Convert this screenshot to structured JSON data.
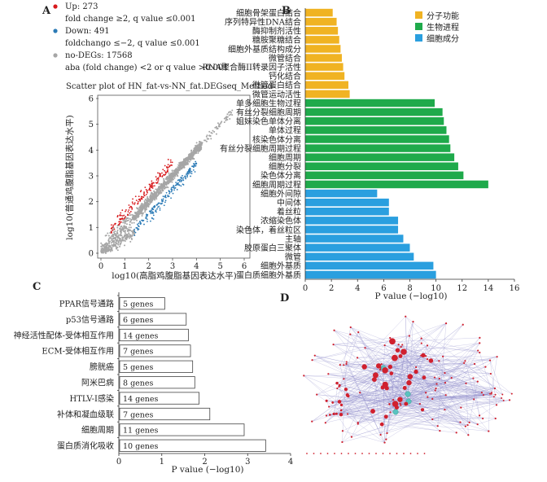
{
  "panels": {
    "A": "A",
    "B": "B",
    "C": "C",
    "D": "D"
  },
  "chart_data": [
    {
      "id": "A",
      "type": "scatter",
      "title": "Scatter plot of HN_fat-vs-NN_fat.DEGseq_Method",
      "xlabel": "log10(高脂鸡腹脂基因表达水平)",
      "ylabel": "log10(普通鸡腹脂基因表达水平)",
      "xlim": [
        0,
        6
      ],
      "ylim": [
        0,
        6
      ],
      "xticks": [
        "0",
        "1",
        "2",
        "3",
        "4",
        "5",
        "6"
      ],
      "yticks": [
        "0",
        "1",
        "2",
        "3",
        "4",
        "5",
        "6"
      ],
      "legend": [
        {
          "name": "Up: 273",
          "desc": "fold change ≥2, q value ≤0.001",
          "color": "#d7191c"
        },
        {
          "name": "Down: 491",
          "desc": "foldchango ≤−2, q value ≤0.001",
          "color": "#2c7bb6"
        },
        {
          "name": "no-DEGs: 17568",
          "desc": "aba (fold change) <2 or q value >0.001",
          "color": "#a6a6a6"
        }
      ],
      "series": [
        {
          "name": "Up",
          "count": 273,
          "color": "#d7191c"
        },
        {
          "name": "Down",
          "count": 491,
          "color": "#2c7bb6"
        },
        {
          "name": "no-DEGs",
          "count": 17568,
          "color": "#a6a6a6"
        }
      ],
      "legend_position": "top"
    },
    {
      "id": "B",
      "type": "bar",
      "orientation": "horizontal",
      "xlabel": "P value (−log10)",
      "xlim": [
        0,
        16
      ],
      "xticks": [
        "0",
        "2",
        "4",
        "6",
        "8",
        "10",
        "12",
        "14",
        "16"
      ],
      "legend_position": "top-right",
      "legend": [
        {
          "name": "分子功能",
          "color": "#f0b323"
        },
        {
          "name": "生物进程",
          "color": "#1faa4b"
        },
        {
          "name": "细胞成分",
          "color": "#2a9fdf"
        }
      ],
      "categories": [
        "细胞骨架蛋白结合",
        "序列特异性DNA结合",
        "酶抑制剂活性",
        "糖胺聚糖结合",
        "细胞外基质结构成分",
        "微管结合",
        "RNA聚合酶II转录因子活性",
        "钙化结合",
        "微管蛋白结合",
        "微管运动活性",
        "单多细胞生物过程",
        "有丝分裂细胞周期",
        "姐妹染色单体分离",
        "单体过程",
        "核染色体分离",
        "有丝分裂细胞周期过程",
        "细胞周期",
        "细胞分裂",
        "染色体分离",
        "细胞周期过程",
        "细胞外间隙",
        "中间体",
        "着丝粒",
        "浓缩染色体",
        "染色体，着丝粒区",
        "主轴",
        "胶原蛋白三聚体",
        "微管",
        "细胞外基质",
        "蛋白质细胞外基质"
      ],
      "groups": [
        "分子功能",
        "分子功能",
        "分子功能",
        "分子功能",
        "分子功能",
        "分子功能",
        "分子功能",
        "分子功能",
        "分子功能",
        "分子功能",
        "生物进程",
        "生物进程",
        "生物进程",
        "生物进程",
        "生物进程",
        "生物进程",
        "生物进程",
        "生物进程",
        "生物进程",
        "生物进程",
        "细胞成分",
        "细胞成分",
        "细胞成分",
        "细胞成分",
        "细胞成分",
        "细胞成分",
        "细胞成分",
        "细胞成分",
        "细胞成分",
        "细胞成分"
      ],
      "values": [
        2.1,
        2.4,
        2.5,
        2.6,
        2.7,
        2.8,
        2.9,
        3.0,
        3.3,
        3.4,
        9.9,
        10.5,
        10.6,
        10.8,
        11.0,
        11.1,
        11.4,
        11.7,
        12.1,
        14.0,
        5.5,
        6.4,
        6.4,
        7.1,
        7.1,
        7.5,
        8.0,
        8.3,
        9.8,
        10.0
      ]
    },
    {
      "id": "C",
      "type": "bar",
      "orientation": "horizontal",
      "xlabel": "P value (−log10)",
      "xlim": [
        0,
        4
      ],
      "xticks": [
        "0",
        "1",
        "2",
        "3",
        "4"
      ],
      "categories": [
        "PPAR信号通路",
        "p53信号通路",
        "神经活性配体-受体相互作用",
        "ECM-受体相互作用",
        "膀胱癌",
        "阿米巴病",
        "HTLV-I感染",
        "补体和凝血级联",
        "细胞周期",
        "蛋白质消化吸收"
      ],
      "values": [
        1.05,
        1.55,
        1.6,
        1.65,
        1.7,
        1.75,
        1.85,
        2.1,
        2.9,
        3.4
      ],
      "bar_labels": [
        "5 genes",
        "6 genes",
        "14 genes",
        "7 genes",
        "5 genes",
        "8 genes",
        "14 genes",
        "7 genes",
        "11 genes",
        "10 genes"
      ]
    },
    {
      "id": "D",
      "type": "network",
      "node_colors": {
        "hub": "#5bc2c2",
        "gene": "#d0202e",
        "edge": "#8a86c8"
      }
    }
  ]
}
